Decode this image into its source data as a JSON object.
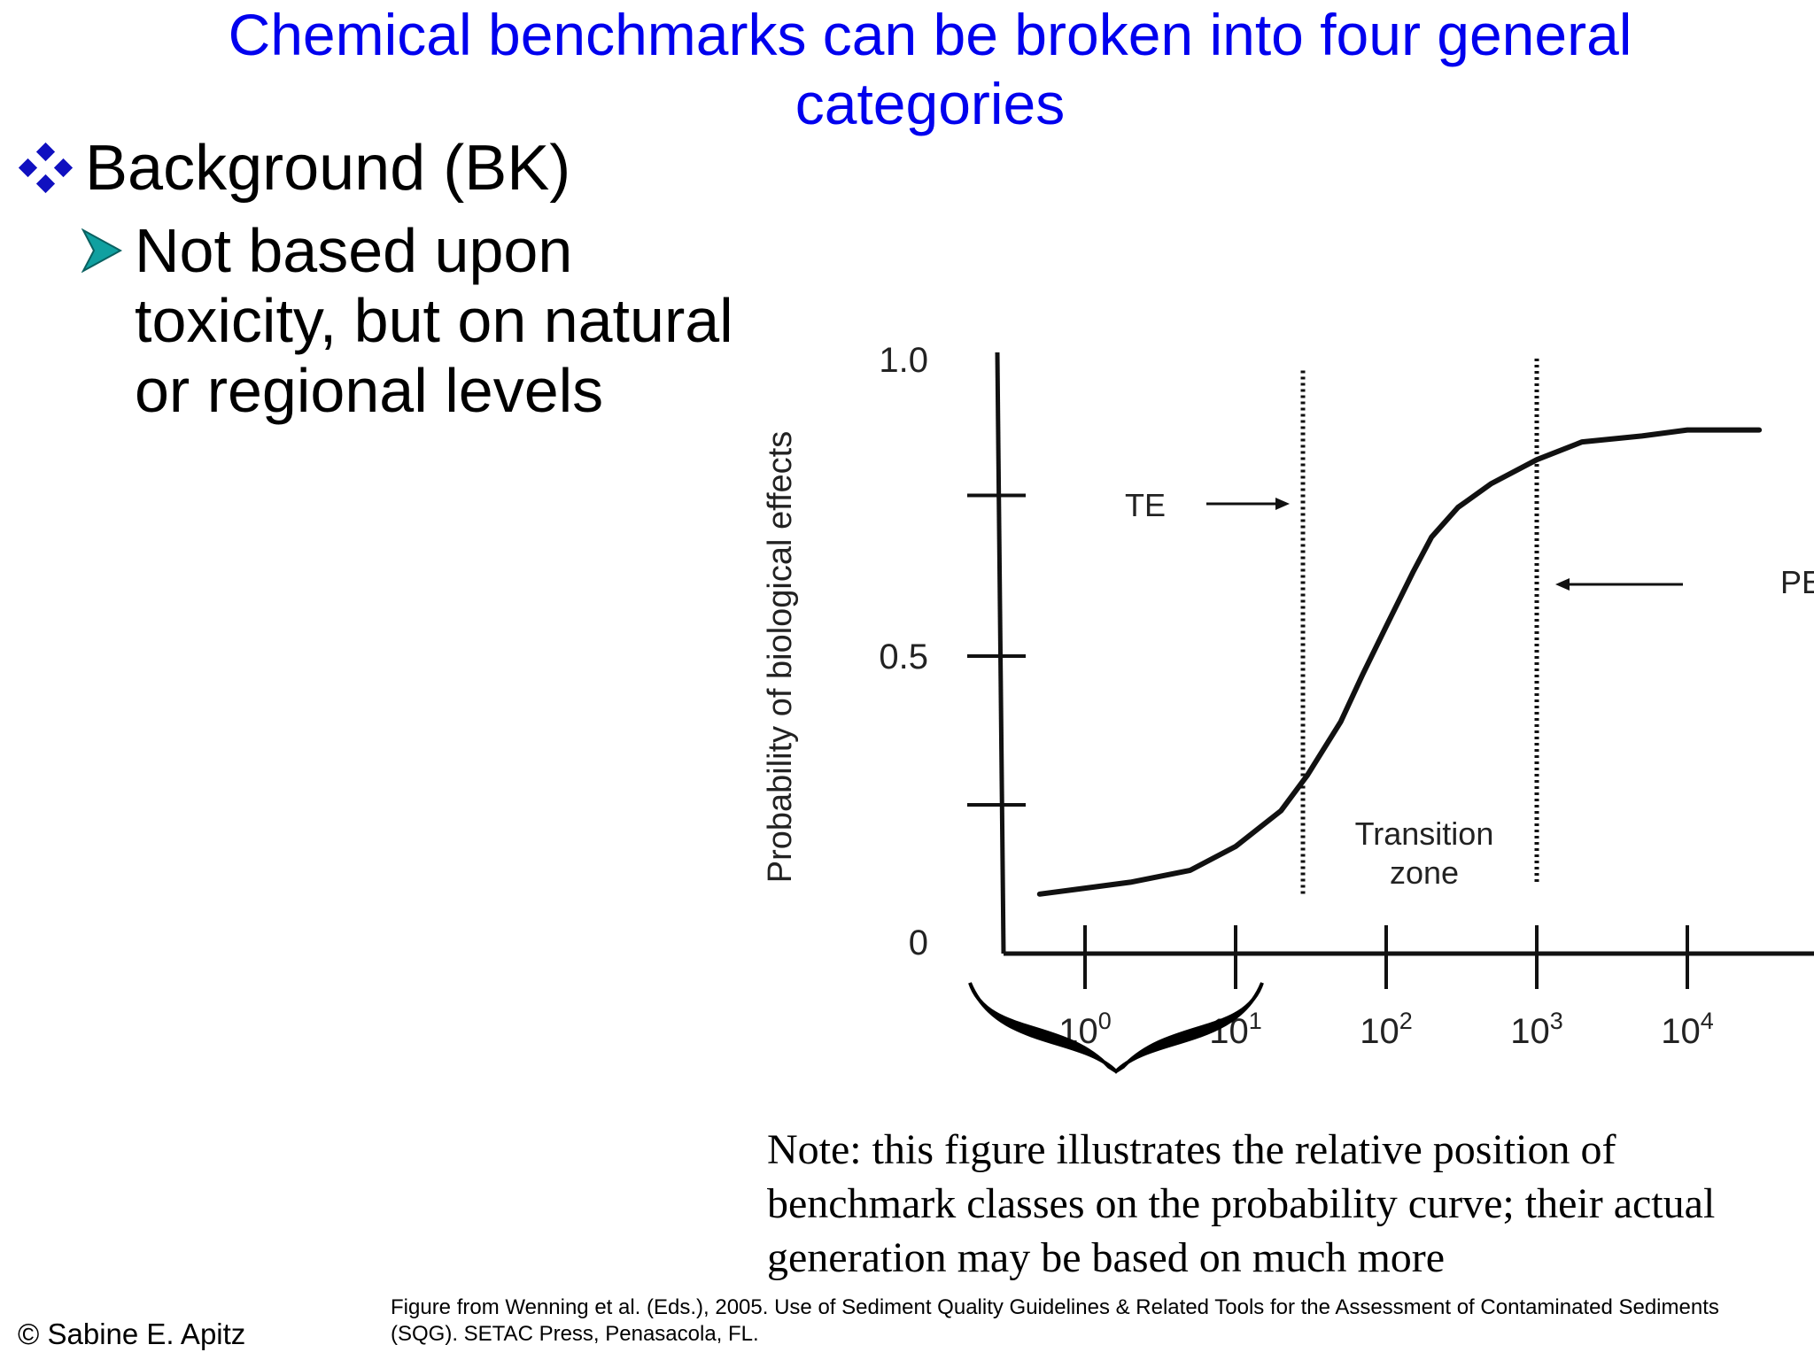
{
  "slide": {
    "title": "Chemical benchmarks can be broken into four general categories",
    "bullet": "Background (BK)",
    "sub_bullet": "Not based upon toxicity, but on natural or regional levels",
    "note": "Note: this figure illustrates the relative position of benchmark classes on the probability curve; their actual generation may be based on much more",
    "copyright": "© Sabine E. Apitz",
    "citation": "Figure from Wenning et al. (Eds.), 2005. Use of Sediment Quality Guidelines & Related Tools for the Assessment of Contaminated Sediments (SQG). SETAC Press, Penasacola, FL.",
    "colors": {
      "title": "#0000ee",
      "bullet_diamond": "#1010c0",
      "sub_arrow": "#10a0a0"
    },
    "icons": {
      "bullet": "diamond-cluster-icon",
      "sub_bullet": "arrowhead-icon",
      "range": "curly-brace-icon"
    }
  },
  "chart_data": {
    "type": "line",
    "ylabel": "Probability of biological effects",
    "xlabel": "",
    "x_scale": "log",
    "xlim": [
      0.5,
      50000
    ],
    "ylim": [
      0,
      1.0
    ],
    "x_ticks": [
      {
        "value": 1,
        "base": "10",
        "exp": "0"
      },
      {
        "value": 10,
        "base": "10",
        "exp": "1"
      },
      {
        "value": 100,
        "base": "10",
        "exp": "2"
      },
      {
        "value": 1000,
        "base": "10",
        "exp": "3"
      },
      {
        "value": 10000,
        "base": "10",
        "exp": "4"
      }
    ],
    "y_tick_values": [
      0.25,
      0.5,
      0.77,
      1.0
    ],
    "y_tick_labels": [
      {
        "value": 0,
        "label": "0"
      },
      {
        "value": 0.5,
        "label": "0.5"
      },
      {
        "value": 1.0,
        "label": "1.0"
      }
    ],
    "series": [
      {
        "x": [
          0.5,
          1,
          2,
          5,
          10,
          20,
          30,
          50,
          70,
          100,
          150,
          200,
          300,
          500,
          1000,
          2000,
          5000,
          10000,
          30000
        ],
        "y": [
          0.1,
          0.11,
          0.12,
          0.14,
          0.18,
          0.24,
          0.3,
          0.39,
          0.47,
          0.55,
          0.64,
          0.7,
          0.75,
          0.79,
          0.83,
          0.86,
          0.87,
          0.88,
          0.88
        ]
      }
    ],
    "vlines": [
      {
        "x": 28,
        "label": "TE",
        "y_range": [
          0.1,
          0.98
        ]
      },
      {
        "x": 1000,
        "label": "PE",
        "y_range": [
          0.12,
          1.0
        ]
      }
    ],
    "annotations": [
      {
        "text_lines": [
          "Transition",
          "zone"
        ],
        "x": 300,
        "y": 0.3
      }
    ],
    "brace": {
      "x_range": [
        0.8,
        12
      ]
    }
  }
}
